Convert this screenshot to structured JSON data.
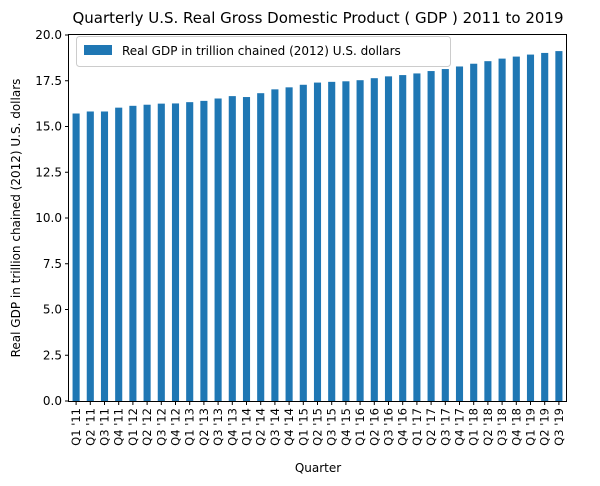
{
  "chart_data": {
    "type": "bar",
    "title": "Quarterly U.S. Real Gross Domestic Product ( GDP ) 2011 to 2019",
    "xlabel": "Quarter",
    "ylabel": "Real GDP in trillion chained (2012) U.S. dollars",
    "ylim": [
      0,
      20
    ],
    "yticks": [
      "0.0",
      "2.5",
      "5.0",
      "7.5",
      "10.0",
      "12.5",
      "15.0",
      "17.5",
      "20.0"
    ],
    "grid": false,
    "legend_position": "top-left",
    "colors": {
      "bar": "#1f77b4"
    },
    "categories": [
      "Q1 '11",
      "Q2 '11",
      "Q3 '11",
      "Q4 '11",
      "Q1 '12",
      "Q2 '12",
      "Q3 '12",
      "Q4 '12",
      "Q1 '13",
      "Q2 '13",
      "Q3 '13",
      "Q4 '13",
      "Q1 '14",
      "Q2 '14",
      "Q3 '14",
      "Q4 '14",
      "Q1 '15",
      "Q2 '15",
      "Q3 '15",
      "Q4 '15",
      "Q1 '16",
      "Q2 '16",
      "Q3 '16",
      "Q4 '16",
      "Q1 '17",
      "Q2 '17",
      "Q3 '17",
      "Q4 '17",
      "Q1 '18",
      "Q2 '18",
      "Q3 '18",
      "Q4 '18",
      "Q1 '19",
      "Q2 '19",
      "Q3 '19"
    ],
    "series": [
      {
        "name": "Real GDP in trillion chained (2012) U.S. dollars",
        "values": [
          15.71,
          15.82,
          15.82,
          16.03,
          16.13,
          16.19,
          16.25,
          16.26,
          16.33,
          16.4,
          16.53,
          16.66,
          16.61,
          16.82,
          17.03,
          17.14,
          17.28,
          17.4,
          17.44,
          17.47,
          17.53,
          17.64,
          17.74,
          17.81,
          17.9,
          18.03,
          18.14,
          18.28,
          18.43,
          18.57,
          18.71,
          18.82,
          18.93,
          19.02,
          19.12
        ]
      }
    ]
  }
}
